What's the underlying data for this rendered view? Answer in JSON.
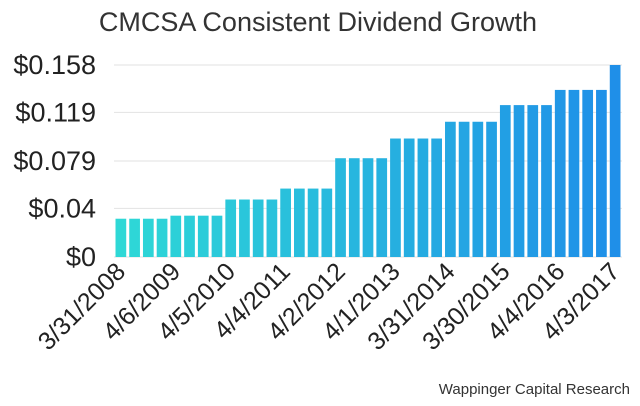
{
  "chart_data": {
    "type": "bar",
    "title": "CMCSA Consistent Dividend Growth",
    "xlabel": "",
    "ylabel": "",
    "ylim": [
      0,
      0.158
    ],
    "yticks": [
      0,
      0.04,
      0.079,
      0.119,
      0.158
    ],
    "ytick_labels": [
      "$0",
      "$0.04",
      "$0.079",
      "$0.119",
      "$0.158"
    ],
    "grid": true,
    "x_labels": [
      "3/31/2008",
      "4/6/2009",
      "4/5/2010",
      "4/4/2011",
      "4/2/2012",
      "4/1/2013",
      "3/31/2014",
      "3/30/2015",
      "4/4/2016",
      "4/3/2017"
    ],
    "x_label_indices": [
      0,
      4,
      8,
      12,
      16,
      20,
      24,
      28,
      32,
      36
    ],
    "values": [
      0.0315,
      0.0315,
      0.0315,
      0.0315,
      0.034,
      0.034,
      0.034,
      0.034,
      0.0473,
      0.0473,
      0.0473,
      0.0473,
      0.0563,
      0.0563,
      0.0563,
      0.0563,
      0.0813,
      0.0813,
      0.0813,
      0.0813,
      0.0975,
      0.0975,
      0.0975,
      0.0975,
      0.1113,
      0.1113,
      0.1113,
      0.1113,
      0.125,
      0.125,
      0.125,
      0.125,
      0.1375,
      0.1375,
      0.1375,
      0.1375,
      0.158
    ],
    "gradient_colors": [
      "#2ed8d6",
      "#1f8fe8"
    ]
  },
  "footer": {
    "credit": "Wappinger Capital Research"
  }
}
